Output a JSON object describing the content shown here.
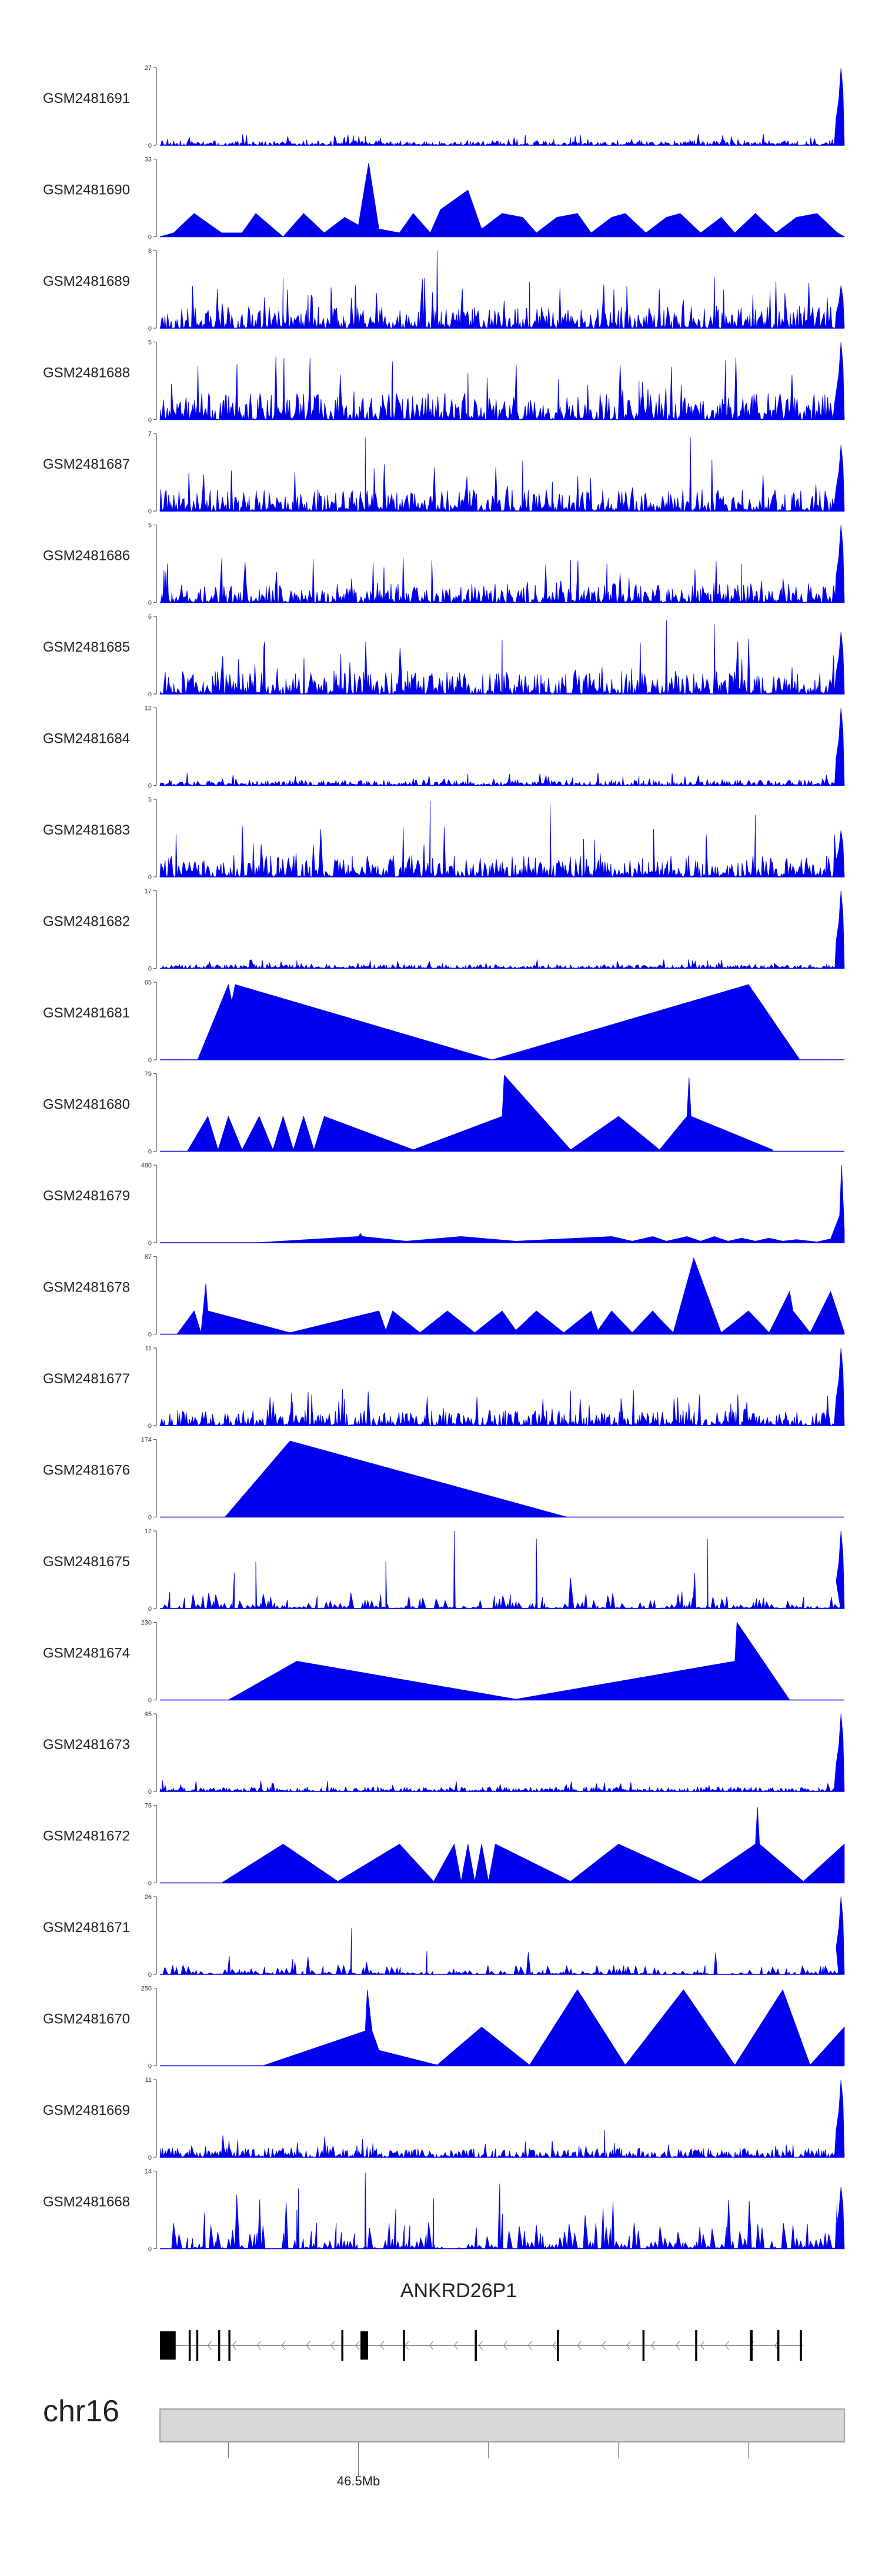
{
  "chart_data": {
    "type": "area",
    "fill_color": "#0000ee",
    "x_range": [
      0,
      100
    ],
    "tracks": [
      {
        "name": "GSM2481691",
        "ymax": "27",
        "style": "dense",
        "seed": 11,
        "end_peak": 1.0,
        "base": 0.06,
        "spikes": [
          [
            30,
            0.12
          ],
          [
            60,
            0.1
          ]
        ]
      },
      {
        "name": "GSM2481690",
        "ymax": "33",
        "style": "tri",
        "points": [
          [
            0,
            0
          ],
          [
            2,
            0.05
          ],
          [
            5,
            0.3
          ],
          [
            9,
            0.05
          ],
          [
            12,
            0.05
          ],
          [
            14,
            0.3
          ],
          [
            18,
            0
          ],
          [
            21,
            0.3
          ],
          [
            24,
            0.05
          ],
          [
            27,
            0.25
          ],
          [
            29,
            0.15
          ],
          [
            30.5,
            0.95
          ],
          [
            32,
            0.1
          ],
          [
            35,
            0.05
          ],
          [
            37,
            0.3
          ],
          [
            39.5,
            0.05
          ],
          [
            41,
            0.35
          ],
          [
            45,
            0.6
          ],
          [
            47,
            0.1
          ],
          [
            50,
            0.3
          ],
          [
            53,
            0.25
          ],
          [
            55,
            0.05
          ],
          [
            58,
            0.25
          ],
          [
            61,
            0.3
          ],
          [
            63,
            0.05
          ],
          [
            66,
            0.25
          ],
          [
            68,
            0.3
          ],
          [
            71,
            0.05
          ],
          [
            74,
            0.25
          ],
          [
            76,
            0.3
          ],
          [
            79,
            0.05
          ],
          [
            82,
            0.25
          ],
          [
            84,
            0.05
          ],
          [
            87,
            0.3
          ],
          [
            90,
            0.05
          ],
          [
            93,
            0.25
          ],
          [
            96,
            0.3
          ],
          [
            99,
            0.05
          ],
          [
            100,
            0
          ]
        ]
      },
      {
        "name": "GSM2481689",
        "ymax": "8",
        "style": "dense",
        "seed": 23,
        "end_peak": 0.55,
        "base": 0.28,
        "spikes": [
          [
            40.5,
            1.0
          ],
          [
            18,
            0.65
          ],
          [
            54,
            0.6
          ],
          [
            90,
            0.6
          ]
        ]
      },
      {
        "name": "GSM2481688",
        "ymax": "5",
        "style": "dense",
        "seed": 37,
        "end_peak": 1.0,
        "base": 0.35,
        "spikes": [
          [
            34,
            0.75
          ],
          [
            70,
            0.5
          ],
          [
            45,
            0.6
          ]
        ]
      },
      {
        "name": "GSM2481687",
        "ymax": "7",
        "style": "dense",
        "seed": 41,
        "end_peak": 0.85,
        "base": 0.28,
        "spikes": [
          [
            30,
            0.95
          ],
          [
            77.5,
            0.95
          ],
          [
            53,
            0.65
          ]
        ]
      },
      {
        "name": "GSM2481686",
        "ymax": "5",
        "style": "dense",
        "seed": 53,
        "end_peak": 1.0,
        "base": 0.25,
        "spikes": [
          [
            60,
            0.55
          ],
          [
            85,
            0.5
          ]
        ]
      },
      {
        "name": "GSM2481685",
        "ymax": "6",
        "style": "dense",
        "seed": 67,
        "end_peak": 0.8,
        "base": 0.3,
        "spikes": [
          [
            74,
            0.95
          ],
          [
            81,
            0.9
          ],
          [
            50,
            0.7
          ]
        ]
      },
      {
        "name": "GSM2481684",
        "ymax": "12",
        "style": "dense",
        "seed": 71,
        "end_peak": 1.0,
        "base": 0.07,
        "spikes": [
          [
            45,
            0.15
          ],
          [
            70,
            0.12
          ]
        ]
      },
      {
        "name": "GSM2481683",
        "ymax": "5",
        "style": "dense",
        "seed": 83,
        "end_peak": 0.6,
        "base": 0.28,
        "spikes": [
          [
            39.5,
            0.98
          ],
          [
            57,
            0.95
          ],
          [
            87,
            0.8
          ]
        ]
      },
      {
        "name": "GSM2481682",
        "ymax": "17",
        "style": "dense",
        "seed": 97,
        "end_peak": 1.0,
        "base": 0.05,
        "spikes": [
          [
            20,
            0.1
          ],
          [
            80,
            0.1
          ]
        ]
      },
      {
        "name": "GSM2481681",
        "ymax": "65",
        "style": "tri",
        "points": [
          [
            5.5,
            0
          ],
          [
            10,
            0.97
          ],
          [
            10.5,
            0.75
          ],
          [
            11,
            0.97
          ],
          [
            48.5,
            0
          ],
          [
            86,
            0.97
          ],
          [
            93.5,
            0
          ]
        ]
      },
      {
        "name": "GSM2481680",
        "ymax": "79",
        "style": "tri",
        "points": [
          [
            4,
            0
          ],
          [
            7,
            0.45
          ],
          [
            8.5,
            0.02
          ],
          [
            10,
            0.45
          ],
          [
            12,
            0.02
          ],
          [
            14.5,
            0.45
          ],
          [
            16.5,
            0.02
          ],
          [
            18,
            0.45
          ],
          [
            19.5,
            0.02
          ],
          [
            21,
            0.45
          ],
          [
            22.5,
            0.02
          ],
          [
            24,
            0.45
          ],
          [
            37,
            0.02
          ],
          [
            50,
            0.45
          ],
          [
            50.3,
            0.98
          ],
          [
            60,
            0.02
          ],
          [
            67,
            0.45
          ],
          [
            73,
            0.02
          ],
          [
            77,
            0.45
          ],
          [
            77.3,
            0.95
          ],
          [
            77.6,
            0.45
          ],
          [
            89.5,
            0.02
          ]
        ]
      },
      {
        "name": "GSM2481679",
        "ymax": "480",
        "style": "tri",
        "points": [
          [
            14,
            0
          ],
          [
            29,
            0.08
          ],
          [
            29.3,
            0.12
          ],
          [
            29.6,
            0.08
          ],
          [
            36,
            0.02
          ],
          [
            44,
            0.08
          ],
          [
            52,
            0.02
          ],
          [
            66,
            0.08
          ],
          [
            69,
            0.02
          ],
          [
            72,
            0.08
          ],
          [
            74,
            0.02
          ],
          [
            77,
            0.08
          ],
          [
            79,
            0.02
          ],
          [
            81,
            0.08
          ],
          [
            83,
            0.02
          ],
          [
            85,
            0.06
          ],
          [
            87,
            0.02
          ],
          [
            89,
            0.06
          ],
          [
            91,
            0.02
          ],
          [
            93,
            0.04
          ],
          [
            96,
            0.01
          ],
          [
            98,
            0.05
          ],
          [
            99.3,
            0.35
          ],
          [
            99.6,
            1.0
          ],
          [
            100,
            0.15
          ]
        ]
      },
      {
        "name": "GSM2481678",
        "ymax": "87",
        "style": "tri",
        "points": [
          [
            2.5,
            0
          ],
          [
            5,
            0.3
          ],
          [
            6,
            0.02
          ],
          [
            6.7,
            0.65
          ],
          [
            7,
            0.3
          ],
          [
            19,
            0.02
          ],
          [
            32,
            0.3
          ],
          [
            33,
            0.05
          ],
          [
            34,
            0.3
          ],
          [
            38,
            0.02
          ],
          [
            42,
            0.3
          ],
          [
            46,
            0.02
          ],
          [
            50,
            0.3
          ],
          [
            52,
            0.05
          ],
          [
            55,
            0.3
          ],
          [
            59,
            0.02
          ],
          [
            63,
            0.3
          ],
          [
            64,
            0.05
          ],
          [
            66,
            0.3
          ],
          [
            69,
            0.02
          ],
          [
            72,
            0.3
          ],
          [
            73,
            0.2
          ],
          [
            75,
            0.02
          ],
          [
            78,
            0.98
          ],
          [
            82,
            0.02
          ],
          [
            86,
            0.3
          ],
          [
            89,
            0.02
          ],
          [
            92,
            0.55
          ],
          [
            92.5,
            0.3
          ],
          [
            95,
            0.02
          ],
          [
            98,
            0.55
          ],
          [
            100,
            0.02
          ]
        ]
      },
      {
        "name": "GSM2481677",
        "ymax": "11",
        "style": "dense",
        "seed": 101,
        "end_peak": 1.0,
        "base": 0.2,
        "spikes": [
          [
            60,
            0.45
          ]
        ]
      },
      {
        "name": "GSM2481676",
        "ymax": "174",
        "style": "tri",
        "points": [
          [
            9.5,
            0
          ],
          [
            19,
            0.98
          ],
          [
            59.5,
            0
          ]
        ]
      },
      {
        "name": "GSM2481675",
        "ymax": "12",
        "style": "tri_dense",
        "seed": 113,
        "end_peak": 1.0,
        "base": 0.2,
        "spikes": [
          [
            43,
            1.0
          ],
          [
            55,
            0.9
          ],
          [
            80,
            0.9
          ],
          [
            33,
            0.6
          ],
          [
            14,
            0.6
          ]
        ]
      },
      {
        "name": "GSM2481674",
        "ymax": "230",
        "style": "tri",
        "points": [
          [
            10,
            0
          ],
          [
            20,
            0.5
          ],
          [
            52,
            0.01
          ],
          [
            84,
            0.5
          ],
          [
            84.3,
            1.0
          ],
          [
            92,
            0
          ]
        ]
      },
      {
        "name": "GSM2481673",
        "ymax": "45",
        "style": "dense",
        "seed": 127,
        "end_peak": 1.0,
        "base": 0.06,
        "spikes": []
      },
      {
        "name": "GSM2481672",
        "ymax": "76",
        "style": "tri",
        "points": [
          [
            9,
            0
          ],
          [
            18,
            0.5
          ],
          [
            26,
            0.02
          ],
          [
            35,
            0.5
          ],
          [
            40,
            0.02
          ],
          [
            43,
            0.5
          ],
          [
            44,
            0.02
          ],
          [
            45,
            0.5
          ],
          [
            46,
            0.02
          ],
          [
            47,
            0.5
          ],
          [
            48,
            0.02
          ],
          [
            49,
            0.5
          ],
          [
            60,
            0.02
          ],
          [
            67,
            0.5
          ],
          [
            79,
            0.02
          ],
          [
            87,
            0.5
          ],
          [
            87.3,
            0.98
          ],
          [
            87.6,
            0.5
          ],
          [
            94,
            0.02
          ],
          [
            100,
            0.5
          ]
        ]
      },
      {
        "name": "GSM2481671",
        "ymax": "26",
        "style": "tri_dense",
        "seed": 139,
        "end_peak": 1.0,
        "base": 0.12,
        "spikes": [
          [
            28,
            0.6
          ],
          [
            39,
            0.3
          ]
        ]
      },
      {
        "name": "GSM2481670",
        "ymax": "250",
        "style": "tri",
        "points": [
          [
            15,
            0
          ],
          [
            30,
            0.45
          ],
          [
            30.3,
            0.98
          ],
          [
            31,
            0.45
          ],
          [
            32,
            0.2
          ],
          [
            40.5,
            0.01
          ],
          [
            47,
            0.5
          ],
          [
            54,
            0.01
          ],
          [
            61,
            0.98
          ],
          [
            68,
            0.01
          ],
          [
            76.5,
            0.98
          ],
          [
            84,
            0.01
          ],
          [
            91,
            0.98
          ],
          [
            95,
            0.01
          ],
          [
            100,
            0.5
          ]
        ]
      },
      {
        "name": "GSM2481669",
        "ymax": "11",
        "style": "dense",
        "seed": 151,
        "end_peak": 1.0,
        "base": 0.12,
        "spikes": [
          [
            65,
            0.35
          ]
        ]
      },
      {
        "name": "GSM2481668",
        "ymax": "14",
        "style": "tri_dense",
        "seed": 163,
        "end_peak": 0.8,
        "base": 0.35,
        "spikes": [
          [
            30,
            0.98
          ],
          [
            40,
            0.65
          ],
          [
            20,
            0.5
          ]
        ]
      }
    ],
    "gene": {
      "name": "ANKRD26P1",
      "strand": "-",
      "exons": [
        [
          0,
          2.3
        ],
        [
          4.2,
          4.5
        ],
        [
          5.3,
          5.6
        ],
        [
          8.5,
          8.8
        ],
        [
          10,
          10.3
        ],
        [
          26.5,
          26.8
        ],
        [
          29.3,
          30.4
        ],
        [
          35.5,
          35.8
        ],
        [
          46,
          46.3
        ],
        [
          58,
          58.3
        ],
        [
          70.5,
          70.8
        ],
        [
          78.2,
          78.5
        ],
        [
          86.2,
          86.6
        ],
        [
          90.2,
          90.5
        ],
        [
          93.5,
          93.8
        ]
      ]
    },
    "ideogram": {
      "chrom": "chr16",
      "major_tick_label": "46.5Mb",
      "major_tick": 29,
      "minor_ticks": [
        10,
        48,
        67,
        86
      ]
    }
  }
}
